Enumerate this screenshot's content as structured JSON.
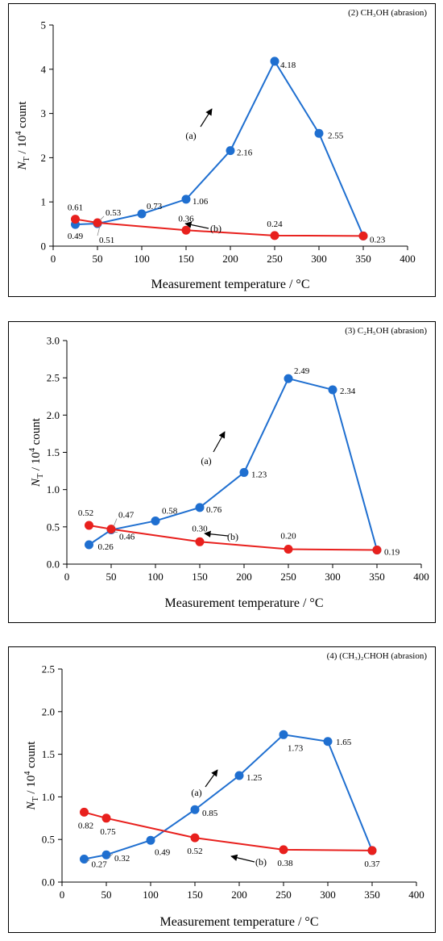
{
  "chart_data": [
    {
      "type": "line",
      "title": "(2) CH₃OH (abrasion)",
      "xlabel": "Measurement temperature / °C",
      "ylabel_parts": [
        "N",
        "T",
        "/ 10",
        "4",
        " count"
      ],
      "xlim": [
        0,
        400
      ],
      "ylim": [
        0,
        5
      ],
      "xticks": [
        0,
        50,
        100,
        150,
        200,
        250,
        300,
        350,
        400
      ],
      "yticks": [
        0,
        1,
        2,
        3,
        4,
        5
      ],
      "ytick_labels": [
        "0",
        "1",
        "2",
        "3",
        "4",
        "5"
      ],
      "grid": false,
      "series": [
        {
          "color": "#1F6FD0",
          "x": [
            25,
            50,
            100,
            150,
            200,
            250,
            300,
            350
          ],
          "y": [
            0.49,
            0.51,
            0.73,
            1.06,
            2.16,
            4.18,
            2.55,
            0.23
          ],
          "labels": [
            "0.49",
            "0.51",
            "0.73",
            "1.06",
            "2.16",
            "4.18",
            "2.55",
            "0.23"
          ]
        },
        {
          "color": "#E8201D",
          "x": [
            25,
            50,
            150,
            250,
            350
          ],
          "y": [
            0.61,
            0.53,
            0.36,
            0.24,
            0.23
          ],
          "labels": [
            "0.61",
            "0.53",
            "0.36",
            "0.24",
            ""
          ]
        }
      ],
      "annotations": [
        {
          "text": "(a)"
        },
        {
          "text": "(b)"
        }
      ]
    },
    {
      "type": "line",
      "title": "(3) C₂H₅OH (abrasion)",
      "xlabel": "Measurement temperature / °C",
      "ylabel_parts": [
        "N",
        "T",
        "/ 10",
        "4",
        " count"
      ],
      "xlim": [
        0,
        400
      ],
      "ylim": [
        0,
        3
      ],
      "xticks": [
        0,
        50,
        100,
        150,
        200,
        250,
        300,
        350,
        400
      ],
      "yticks": [
        0,
        0.5,
        1,
        1.5,
        2,
        2.5,
        3
      ],
      "ytick_labels": [
        "0.0",
        "0.5",
        "1.0",
        "1.5",
        "2.0",
        "2.5",
        "3.0"
      ],
      "grid": false,
      "series": [
        {
          "color": "#1F6FD0",
          "x": [
            25,
            50,
            100,
            150,
            200,
            250,
            300,
            350
          ],
          "y": [
            0.26,
            0.46,
            0.58,
            0.76,
            1.23,
            2.49,
            2.34,
            0.19
          ],
          "labels": [
            "0.26",
            "0.46",
            "0.58",
            "0.76",
            "1.23",
            "2.49",
            "2.34",
            "0.19"
          ]
        },
        {
          "color": "#E8201D",
          "x": [
            25,
            50,
            150,
            250,
            350
          ],
          "y": [
            0.52,
            0.47,
            0.3,
            0.2,
            0.19
          ],
          "labels": [
            "0.52",
            "0.47",
            "0.30",
            "0.20",
            ""
          ]
        }
      ],
      "annotations": [
        {
          "text": "(a)"
        },
        {
          "text": "(b)"
        }
      ]
    },
    {
      "type": "line",
      "title": "(4) (CH₃)₂CHOH (abrasion)",
      "xlabel": "Measurement temperature / °C",
      "ylabel_parts": [
        "N",
        "T",
        "/ 10",
        "4",
        " count"
      ],
      "xlim": [
        0,
        400
      ],
      "ylim": [
        0,
        2.5
      ],
      "xticks": [
        0,
        50,
        100,
        150,
        200,
        250,
        300,
        350,
        400
      ],
      "yticks": [
        0,
        0.5,
        1,
        1.5,
        2,
        2.5
      ],
      "ytick_labels": [
        "0.0",
        "0.5",
        "1.0",
        "1.5",
        "2.0",
        "2.5"
      ],
      "grid": false,
      "series": [
        {
          "color": "#1F6FD0",
          "x": [
            25,
            50,
            100,
            150,
            200,
            250,
            300,
            350
          ],
          "y": [
            0.27,
            0.32,
            0.49,
            0.85,
            1.25,
            1.73,
            1.65,
            0.37
          ],
          "labels": [
            "0.27",
            "0.32",
            "0.49",
            "0.85",
            "1.25",
            "1.73",
            "1.65",
            ""
          ]
        },
        {
          "color": "#E8201D",
          "x": [
            25,
            50,
            150,
            250,
            350
          ],
          "y": [
            0.82,
            0.75,
            0.52,
            0.38,
            0.37
          ],
          "labels": [
            "0.82",
            "0.75",
            "0.52",
            "0.38",
            "0.37"
          ]
        }
      ],
      "annotations": [
        {
          "text": "(a)"
        },
        {
          "text": "(b)"
        }
      ]
    }
  ]
}
